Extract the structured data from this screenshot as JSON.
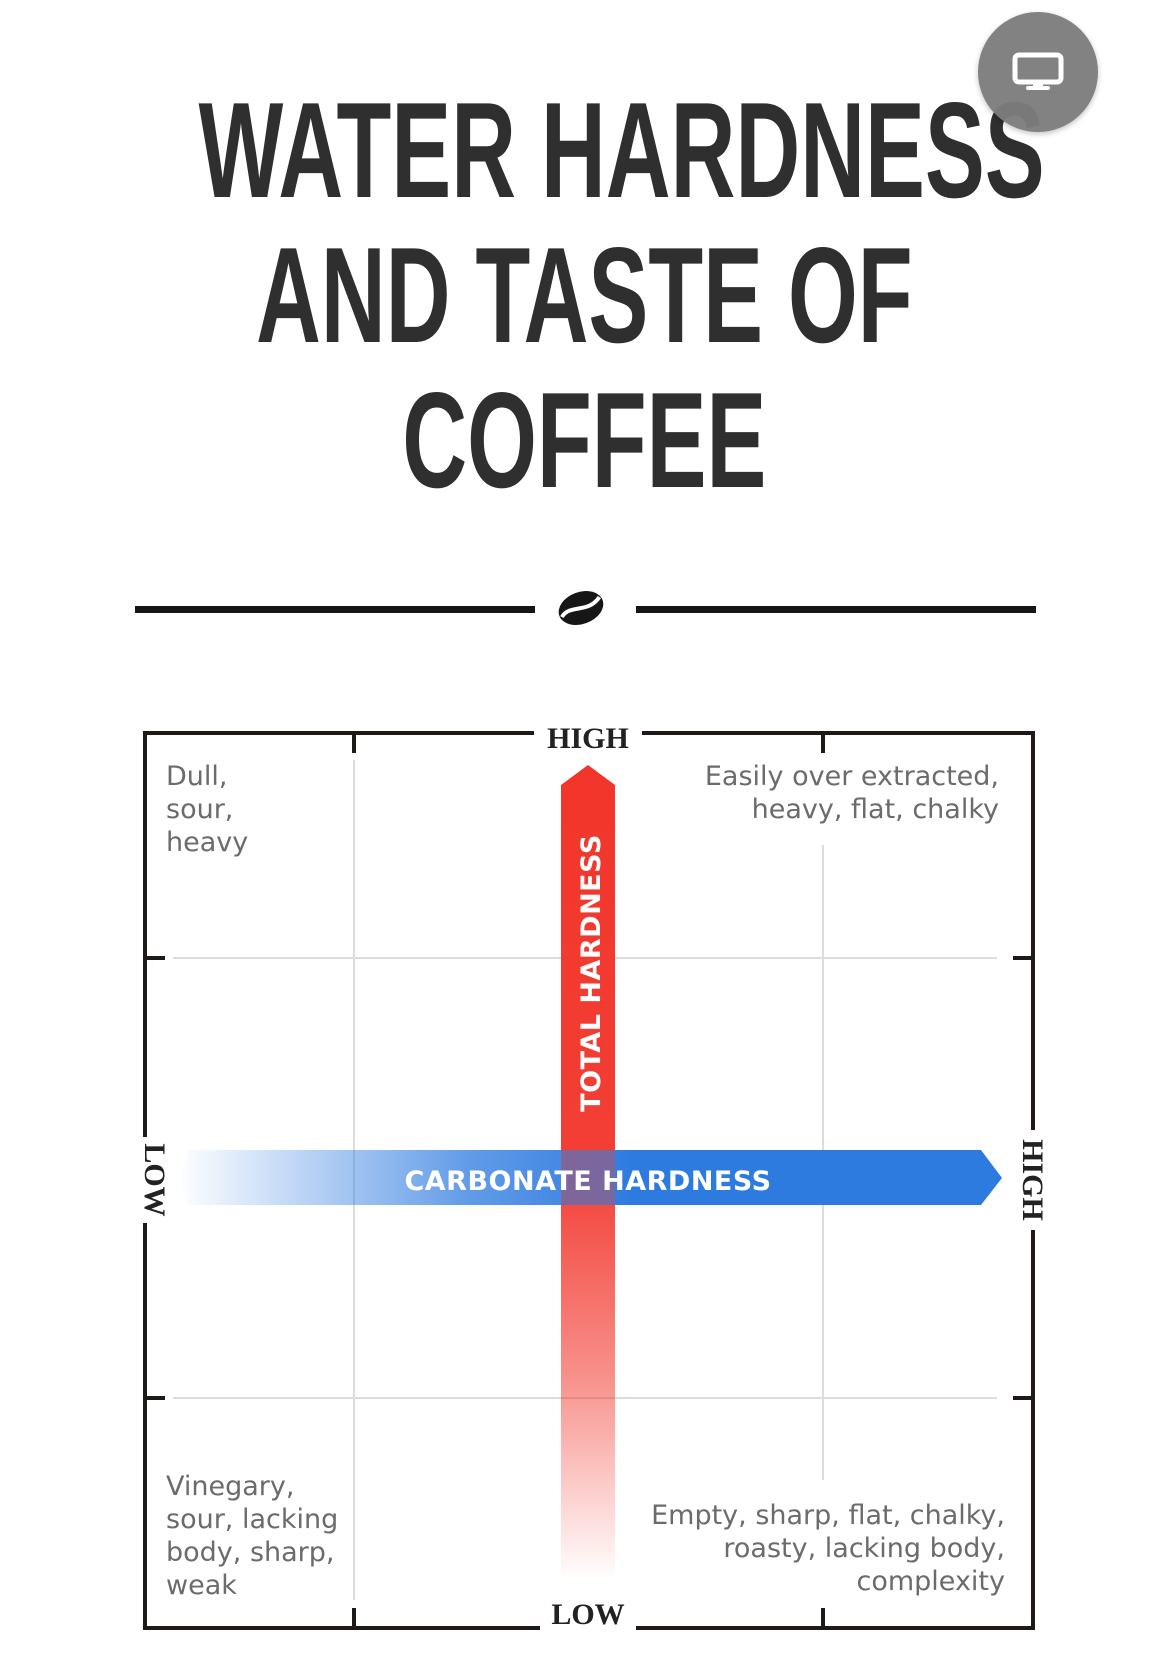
{
  "title_lines": [
    "WATER HARDNESS",
    "AND TASTE OF",
    "COFFEE"
  ],
  "icons": {
    "divider": "coffee-bean-icon",
    "floating_button": "monitor-icon"
  },
  "chart_data": {
    "type": "quadrant",
    "x_axis": {
      "label": "CARBONATE HARDNESS",
      "low": "LOW",
      "high": "HIGH",
      "color": "#2e7be0"
    },
    "y_axis": {
      "label": "TOTAL HARDNESS",
      "low": "LOW",
      "high": "HIGH",
      "color": "#f2352b"
    },
    "quadrants": {
      "top_left": "Dull,\nsour,\nheavy",
      "top_right": "Easily over extracted,\nheavy, flat, chalky",
      "bottom_left": "Vinegary,\nsour, lacking\nbody, sharp,\nweak",
      "bottom_right": "Empty, sharp, flat, chalky,\nroasty, lacking body,\ncomplexity"
    },
    "grid": true
  },
  "colors": {
    "title": "#2f2f2f",
    "frame": "#1f1a17",
    "grid": "#dcdcdc",
    "corner_text": "#6b6b6b"
  }
}
